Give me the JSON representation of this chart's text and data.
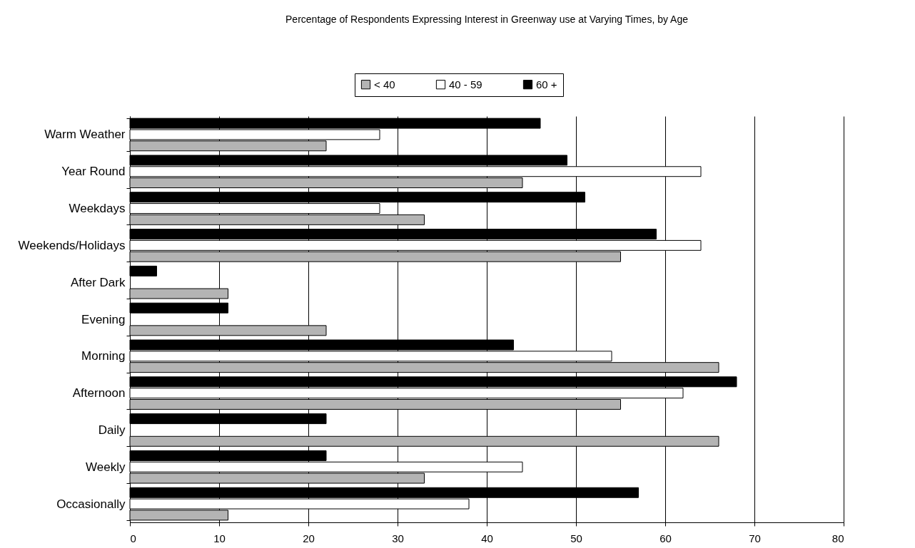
{
  "chart_data": {
    "type": "bar",
    "orientation": "horizontal",
    "title": "Percentage of Respondents Expressing Interest in Greenway use at Varying Times, by Age",
    "categories": [
      "Warm Weather",
      "Year Round",
      "Weekdays",
      "Weekends/Holidays",
      "After Dark",
      "Evening",
      "Morning",
      "Afternoon",
      "Daily",
      "Weekly",
      "Occasionally"
    ],
    "series": [
      {
        "name": "< 40",
        "color": "#b4b4b4",
        "values": [
          22,
          44,
          33,
          55,
          11,
          22,
          66,
          55,
          66,
          33,
          11
        ]
      },
      {
        "name": "40 - 59",
        "color": "#ffffff",
        "values": [
          28,
          64,
          28,
          64,
          null,
          null,
          54,
          62,
          null,
          44,
          38
        ]
      },
      {
        "name": "60 +",
        "color": "#000000",
        "values": [
          46,
          49,
          51,
          59,
          3,
          11,
          43,
          68,
          22,
          22,
          57
        ]
      }
    ],
    "xlim": [
      0,
      80
    ],
    "xticks": [
      0,
      10,
      20,
      30,
      40,
      50,
      60,
      70,
      80
    ],
    "grid": "x",
    "legend": "top"
  }
}
